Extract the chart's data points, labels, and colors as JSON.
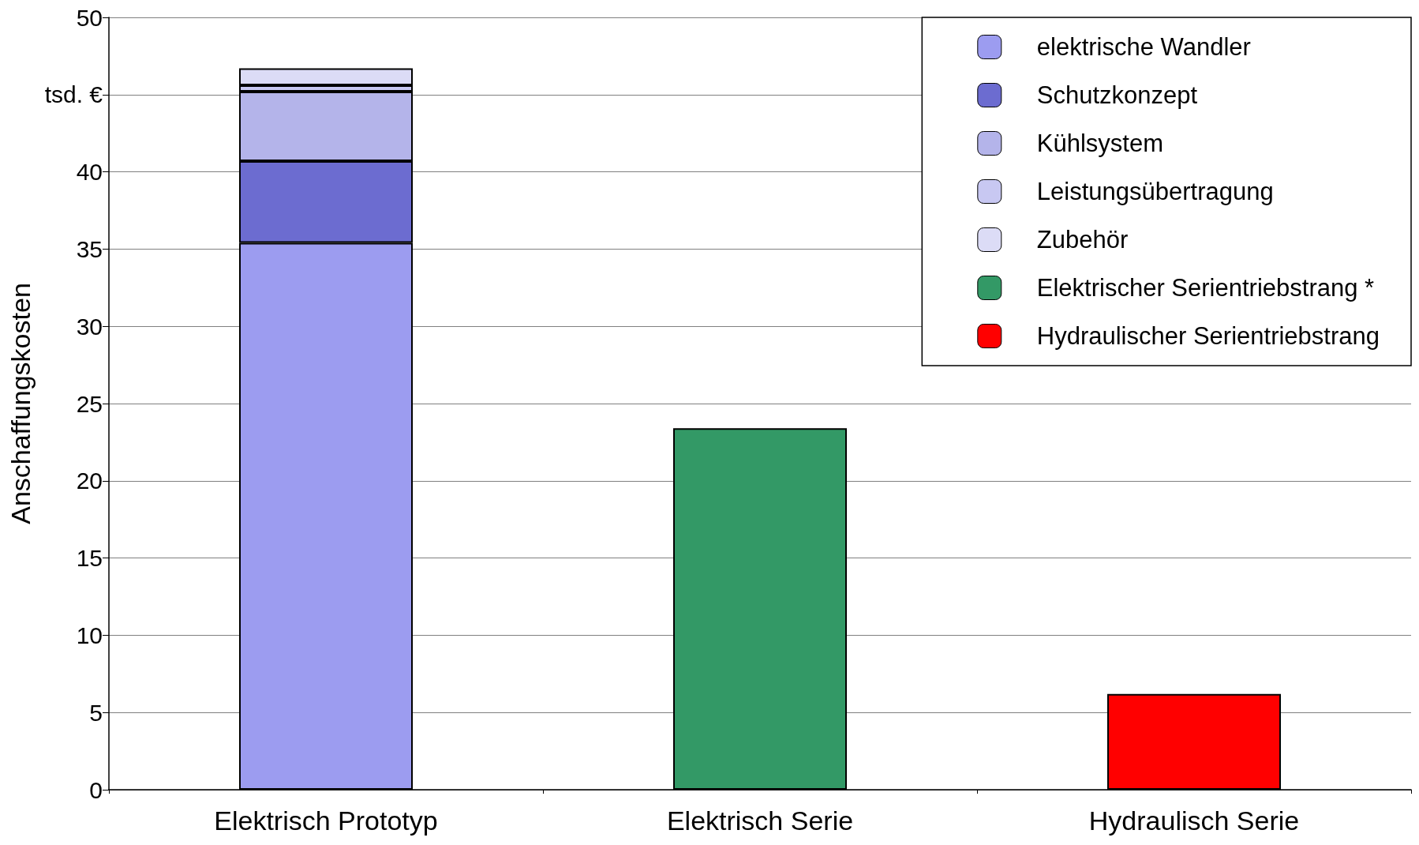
{
  "chart_data": {
    "type": "bar",
    "stacked": true,
    "ylabel": "Anschaffungskosten",
    "categories": [
      "Elektrisch Prototyp",
      "Elektrisch Serie",
      "Hydraulisch Serie"
    ],
    "series": [
      {
        "name": "elektrische Wandler",
        "color": "#9c9cf0",
        "values": [
          35.4,
          null,
          null
        ]
      },
      {
        "name": "Schutzkonzept",
        "color": "#6c6cd0",
        "values": [
          5.3,
          null,
          null
        ]
      },
      {
        "name": "Kühlsystem",
        "color": "#b4b4ea",
        "values": [
          4.5,
          null,
          null
        ]
      },
      {
        "name": "Leistungsübertragung",
        "color": "#c8c8f2",
        "values": [
          0.4,
          null,
          null
        ]
      },
      {
        "name": "Zubehör",
        "color": "#dcdcf6",
        "values": [
          1.1,
          null,
          null
        ]
      },
      {
        "name": "Elektrischer Serientriebstrang *",
        "color": "#339966",
        "values": [
          null,
          23.4,
          null
        ]
      },
      {
        "name": "Hydraulischer Serientriebstrang",
        "color": "#ff0000",
        "values": [
          null,
          null,
          6.2
        ]
      }
    ],
    "ylim": [
      0,
      50
    ],
    "yticks": [
      0,
      5,
      10,
      15,
      20,
      25,
      30,
      35,
      40,
      {
        "value": 45,
        "label": "tsd. €"
      },
      50
    ],
    "grid": "y",
    "legend": "top right"
  }
}
